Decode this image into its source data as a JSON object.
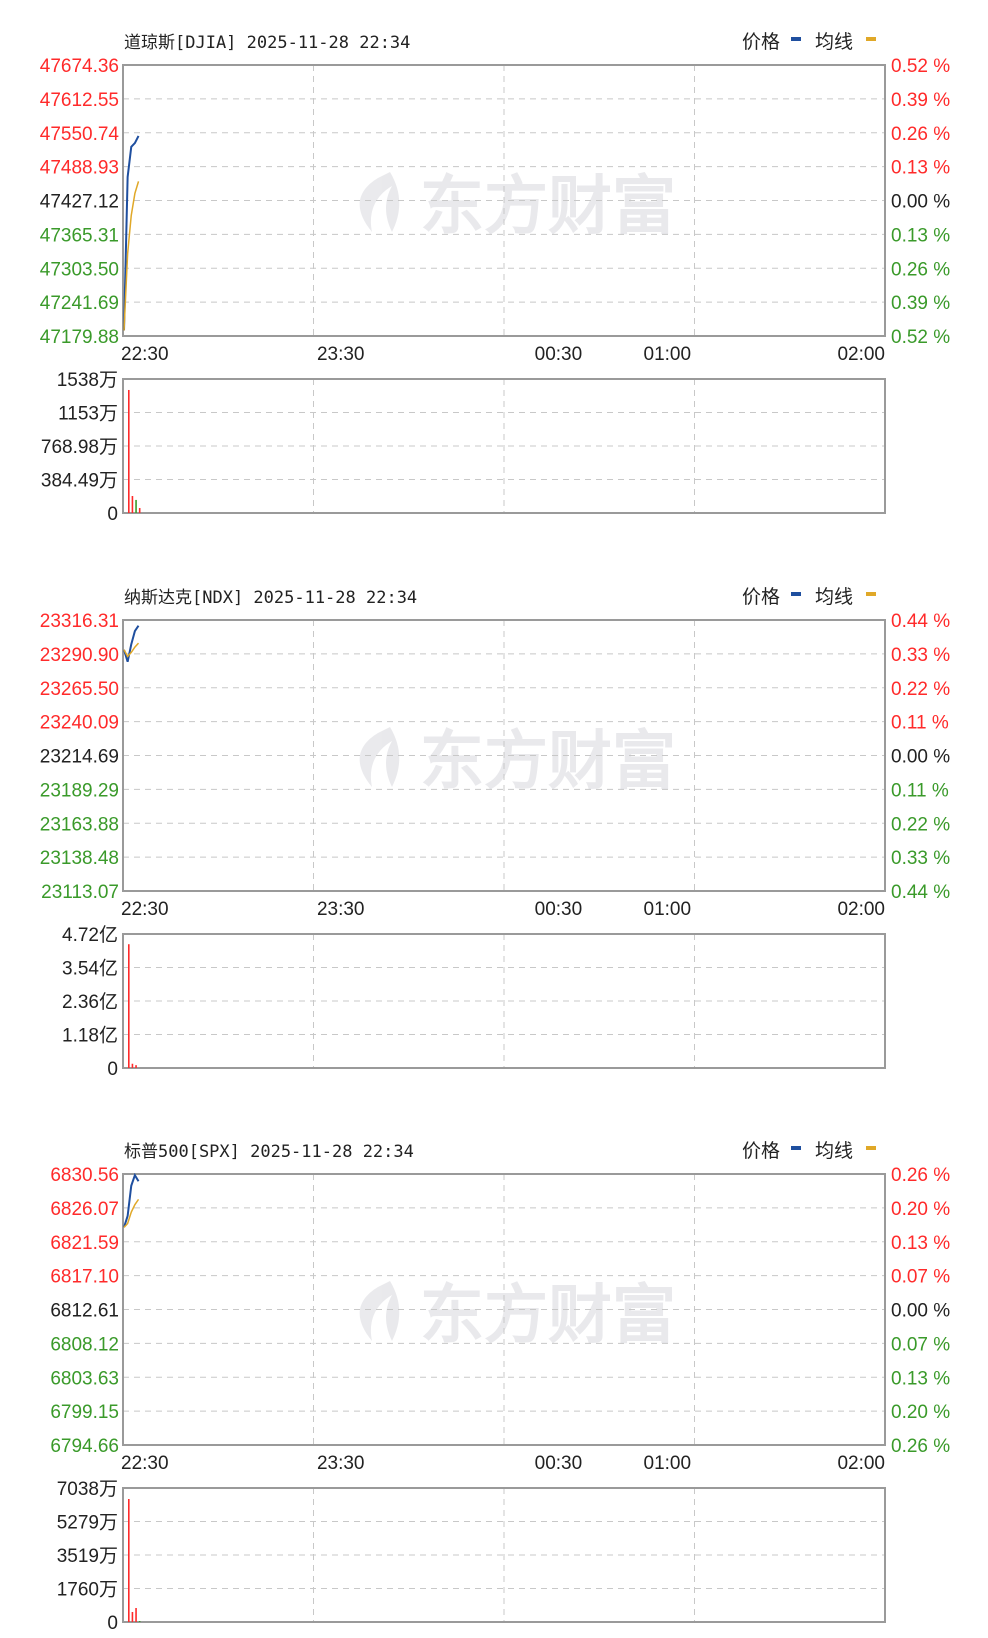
{
  "legend": {
    "price_label": "价格",
    "avg_label": "均线",
    "price_color": "#1f4f9f",
    "avg_color": "#e0a828"
  },
  "colors": {
    "up": "#ff2a2a",
    "down": "#3a9a2a",
    "flat": "#222222",
    "grid": "#c8c8c8",
    "frame": "#9a9a9a"
  },
  "watermark": {
    "text": "东方财富"
  },
  "chart_data": [
    {
      "type": "line",
      "title": "道琼斯[DJIA] 2025-11-28 22:34",
      "x_range": [
        "22:30",
        "02:00"
      ],
      "x_ticks": [
        "22:30",
        "23:30",
        "00:30",
        "01:00",
        "02:00"
      ],
      "ylim": [
        47179.88,
        47674.36
      ],
      "y_ticks": [
        "47674.36",
        "47612.55",
        "47550.74",
        "47488.93",
        "47427.12",
        "47365.31",
        "47303.50",
        "47241.69",
        "47179.88"
      ],
      "pct_ticks": [
        "0.52 %",
        "0.39 %",
        "0.26 %",
        "0.13 %",
        "0.00 %",
        "0.13 %",
        "0.26 %",
        "0.39 %",
        "0.52 %"
      ],
      "times": [
        "22:30",
        "22:31",
        "22:32",
        "22:33",
        "22:34"
      ],
      "series": [
        {
          "name": "价格",
          "values": [
            47190,
            47470,
            47525,
            47532,
            47545
          ]
        },
        {
          "name": "均线",
          "values": [
            47190,
            47330,
            47400,
            47440,
            47462
          ]
        }
      ],
      "volume": {
        "max": 1538,
        "unit": "万",
        "y_ticks": [
          "1538万",
          "1153万",
          "768.98万",
          "384.49万",
          "0"
        ],
        "values": [
          1412,
          195,
          150,
          57
        ],
        "direction": [
          "up",
          "up",
          "down",
          "up"
        ]
      }
    },
    {
      "type": "line",
      "title": "纳斯达克[NDX] 2025-11-28 22:34",
      "x_range": [
        "22:30",
        "02:00"
      ],
      "x_ticks": [
        "22:30",
        "23:30",
        "00:30",
        "01:00",
        "02:00"
      ],
      "ylim": [
        23113.07,
        23316.31
      ],
      "y_ticks": [
        "23316.31",
        "23290.90",
        "23265.50",
        "23240.09",
        "23214.69",
        "23189.29",
        "23163.88",
        "23138.48",
        "23113.07"
      ],
      "pct_ticks": [
        "0.44 %",
        "0.33 %",
        "0.22 %",
        "0.11 %",
        "0.00 %",
        "0.11 %",
        "0.22 %",
        "0.33 %",
        "0.44 %"
      ],
      "times": [
        "22:30",
        "22:31",
        "22:32",
        "22:33",
        "22:34"
      ],
      "series": [
        {
          "name": "价格",
          "values": [
            23294,
            23285,
            23298,
            23308,
            23312
          ]
        },
        {
          "name": "均线",
          "values": [
            23294,
            23289,
            23292,
            23296,
            23299
          ]
        }
      ],
      "volume": {
        "max": 4.72,
        "unit": "亿",
        "y_ticks": [
          "4.72亿",
          "3.54亿",
          "2.36亿",
          "1.18亿",
          "0"
        ],
        "values": [
          4.36,
          0.15,
          0.1
        ],
        "direction": [
          "up",
          "up",
          "up"
        ]
      }
    },
    {
      "type": "line",
      "title": "标普500[SPX] 2025-11-28 22:34",
      "x_range": [
        "22:30",
        "02:00"
      ],
      "x_ticks": [
        "22:30",
        "23:30",
        "00:30",
        "01:00",
        "02:00"
      ],
      "ylim": [
        6794.66,
        6830.56
      ],
      "y_ticks": [
        "6830.56",
        "6826.07",
        "6821.59",
        "6817.10",
        "6812.61",
        "6808.12",
        "6803.63",
        "6799.15",
        "6794.66"
      ],
      "pct_ticks": [
        "0.26 %",
        "0.20 %",
        "0.13 %",
        "0.07 %",
        "0.00 %",
        "0.07 %",
        "0.13 %",
        "0.20 %",
        "0.26 %"
      ],
      "times": [
        "22:30",
        "22:31",
        "22:32",
        "22:33",
        "22:34"
      ],
      "series": [
        {
          "name": "价格",
          "values": [
            6823.5,
            6825.0,
            6829.0,
            6830.4,
            6829.6
          ]
        },
        {
          "name": "均线",
          "values": [
            6823.5,
            6824.0,
            6825.5,
            6826.5,
            6827.2
          ]
        }
      ],
      "volume": {
        "max": 7038,
        "unit": "万",
        "y_ticks": [
          "7038万",
          "5279万",
          "3519万",
          "1760万",
          "0"
        ],
        "values": [
          6460,
          525,
          735,
          50
        ],
        "direction": [
          "up",
          "up",
          "up",
          "down"
        ]
      }
    }
  ]
}
